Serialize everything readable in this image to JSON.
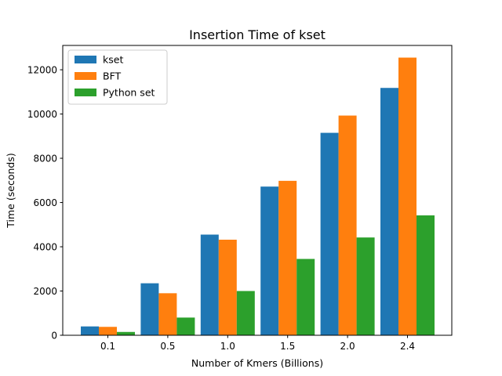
{
  "chart_data": {
    "type": "bar",
    "title": "Insertion Time of kset",
    "xlabel": "Number of Kmers (Billions)",
    "ylabel": "Time (seconds)",
    "categories": [
      "0.1",
      "0.5",
      "1.0",
      "1.5",
      "2.0",
      "2.4"
    ],
    "ylim": [
      0,
      13100
    ],
    "yticks": [
      0,
      2000,
      4000,
      6000,
      8000,
      10000,
      12000
    ],
    "ytick_labels": [
      "0",
      "2000",
      "4000",
      "6000",
      "8000",
      "10000",
      "12000"
    ],
    "legend_position": "upper-left",
    "grid": false,
    "series": [
      {
        "name": "kset",
        "color": "#1f77b4",
        "values": [
          400,
          2350,
          4550,
          6720,
          9150,
          11180
        ]
      },
      {
        "name": "BFT",
        "color": "#ff7f0e",
        "values": [
          380,
          1900,
          4320,
          6980,
          9930,
          12550
        ]
      },
      {
        "name": "Python set",
        "color": "#2ca02c",
        "values": [
          150,
          800,
          2000,
          3450,
          4420,
          5420
        ]
      }
    ]
  }
}
